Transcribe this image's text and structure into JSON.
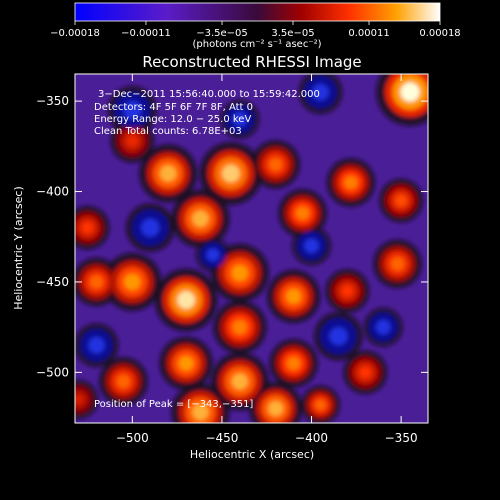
{
  "chart_data": {
    "type": "heatmap",
    "title": "Reconstructed RHESSI Image",
    "xlabel": "Heliocentric X (arcsec)",
    "ylabel": "Heliocentric Y (arcsec)",
    "xlim": [
      -532,
      -335
    ],
    "ylim": [
      -528,
      -335
    ],
    "xticks": [
      -500,
      -450,
      -400,
      -350
    ],
    "xtick_labels": [
      "−500",
      "−450",
      "−400",
      "−350"
    ],
    "yticks": [
      -350,
      -400,
      -450,
      -500
    ],
    "ytick_labels": [
      "−350",
      "−400",
      "−450",
      "−500"
    ],
    "colorbar": {
      "range": [
        -0.00018,
        0.00018
      ],
      "ticks": [
        -0.00018,
        -0.00011,
        -3.5e-05,
        3.5e-05,
        0.00011,
        0.00018
      ],
      "tick_labels": [
        "−0.00018",
        "−0.00011",
        "−3.5e−05",
        "3.5e−05",
        "0.00011",
        "0.00018"
      ],
      "units": "(photons cm⁻² s⁻¹ asec⁻²)"
    },
    "annotations": [
      "3−Dec−2011 15:56:40.000 to 15:59:42.000",
      "Detectors: 4F 5F 6F 7F 8F, Att 0",
      "Energy Range: 12.0 − 25.0 keV",
      "Clean    Total counts: 6.78E+03"
    ],
    "peak_label": "Position of Peak = [−343,−351]",
    "peak_position": [
      -343,
      -351
    ],
    "blobs": [
      [
        -345,
        -345,
        14,
        1.0
      ],
      [
        -480,
        -390,
        12,
        0.85
      ],
      [
        -445,
        -390,
        13,
        0.9
      ],
      [
        -462,
        -415,
        12,
        0.85
      ],
      [
        -420,
        -385,
        10,
        0.7
      ],
      [
        -405,
        -412,
        10,
        0.75
      ],
      [
        -378,
        -395,
        10,
        0.75
      ],
      [
        -350,
        -405,
        9,
        0.65
      ],
      [
        -352,
        -440,
        10,
        0.7
      ],
      [
        -525,
        -420,
        9,
        0.6
      ],
      [
        -520,
        -450,
        10,
        0.7
      ],
      [
        -500,
        -450,
        12,
        0.8
      ],
      [
        -470,
        -460,
        13,
        0.95
      ],
      [
        -440,
        -445,
        12,
        0.8
      ],
      [
        -410,
        -458,
        11,
        0.8
      ],
      [
        -380,
        -455,
        9,
        0.6
      ],
      [
        -440,
        -475,
        11,
        0.75
      ],
      [
        -470,
        -495,
        11,
        0.8
      ],
      [
        -505,
        -505,
        10,
        0.7
      ],
      [
        -440,
        -505,
        12,
        0.85
      ],
      [
        -410,
        -495,
        10,
        0.75
      ],
      [
        -370,
        -500,
        9,
        0.6
      ],
      [
        -462,
        -522,
        12,
        0.85
      ],
      [
        -420,
        -520,
        11,
        0.85
      ],
      [
        -395,
        -518,
        8,
        0.7
      ],
      [
        -500,
        -372,
        9,
        0.55
      ],
      [
        -530,
        -515,
        8,
        0.5
      ],
      [
        -440,
        -360,
        8,
        -0.3
      ],
      [
        -500,
        -355,
        10,
        -0.35
      ],
      [
        -395,
        -345,
        9,
        -0.3
      ],
      [
        -490,
        -420,
        10,
        -0.4
      ],
      [
        -385,
        -480,
        10,
        -0.35
      ],
      [
        -455,
        -435,
        7,
        -0.3
      ],
      [
        -520,
        -485,
        9,
        -0.35
      ],
      [
        -360,
        -475,
        8,
        -0.3
      ],
      [
        -400,
        -430,
        8,
        -0.25
      ]
    ]
  }
}
